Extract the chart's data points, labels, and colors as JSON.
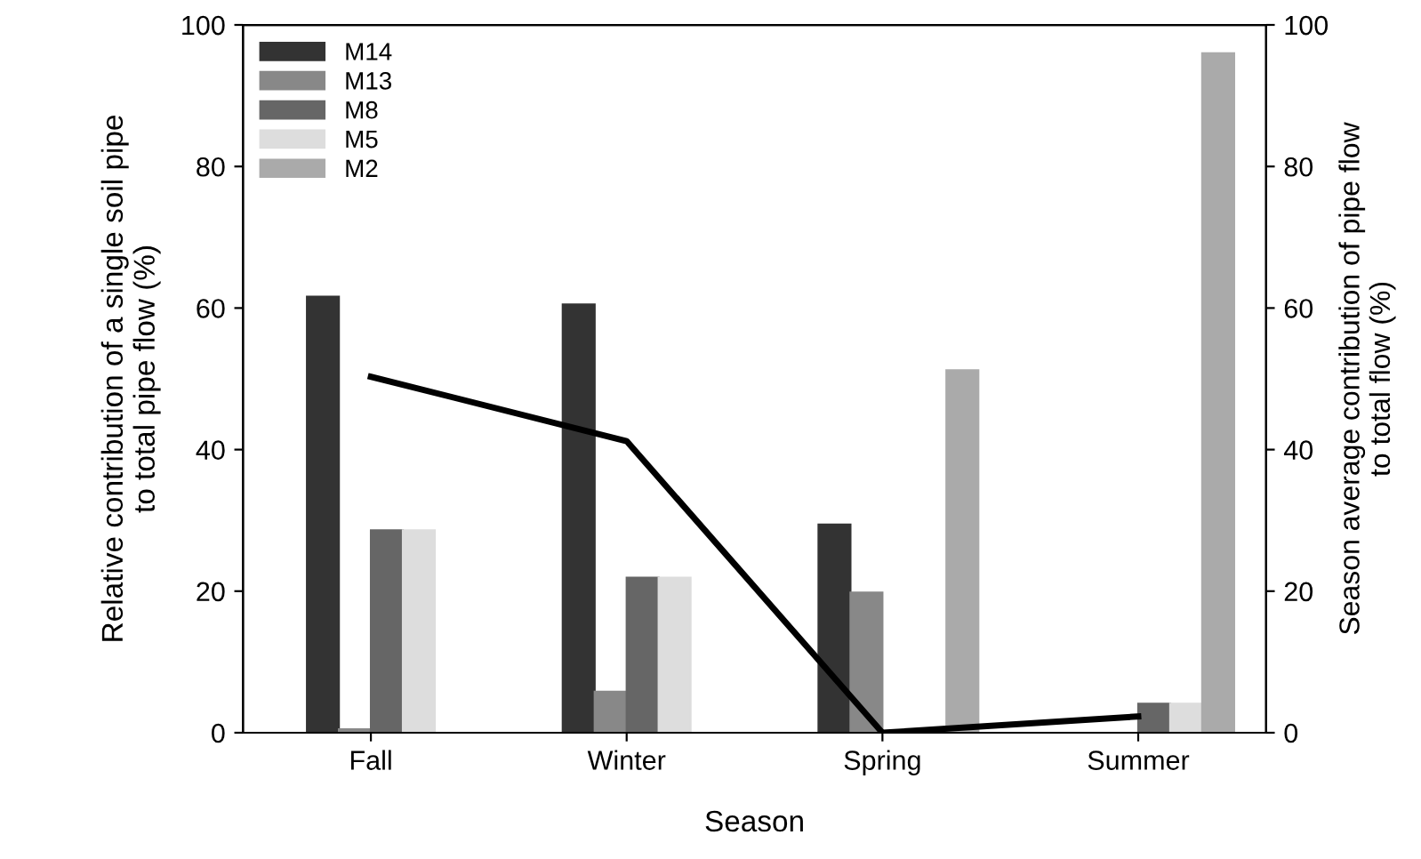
{
  "chart_data": {
    "type": "bar",
    "xlabel": "Season",
    "ylabel": "Relative contribution of a single soil pipe\nto total pipe flow (%)",
    "y2label": "Season average contribution of pipe flow\nto total flow (%)",
    "categories": [
      "Fall",
      "Winter",
      "Spring",
      "Summer"
    ],
    "series": [
      {
        "name": "M14",
        "color": "#333333",
        "values": [
          61.6,
          60.5,
          29.4,
          0
        ]
      },
      {
        "name": "M13",
        "color": "#888888",
        "values": [
          0.5,
          5.8,
          19.8,
          0
        ]
      },
      {
        "name": "M8",
        "color": "#666666",
        "values": [
          28.6,
          21.9,
          0,
          4.1
        ]
      },
      {
        "name": "M5",
        "color": "#dddddd",
        "values": [
          28.6,
          21.9,
          0,
          4.1
        ]
      },
      {
        "name": "M2",
        "color": "#aaaaaa",
        "values": [
          0,
          0,
          51.2,
          96
        ]
      },
      {
        "type": "line",
        "axis": "y2",
        "color": "#000000",
        "values": [
          50.3,
          41.2,
          0,
          2.3
        ]
      }
    ],
    "ylim": [
      0,
      100
    ],
    "yticks": [
      0,
      20,
      40,
      60,
      80,
      100
    ],
    "y2lim": [
      0,
      100
    ],
    "y2ticks": [
      0,
      20,
      40,
      60,
      80,
      100
    ],
    "legend": "top left",
    "grid": false,
    "marker": "none",
    "line_style": "solid"
  }
}
